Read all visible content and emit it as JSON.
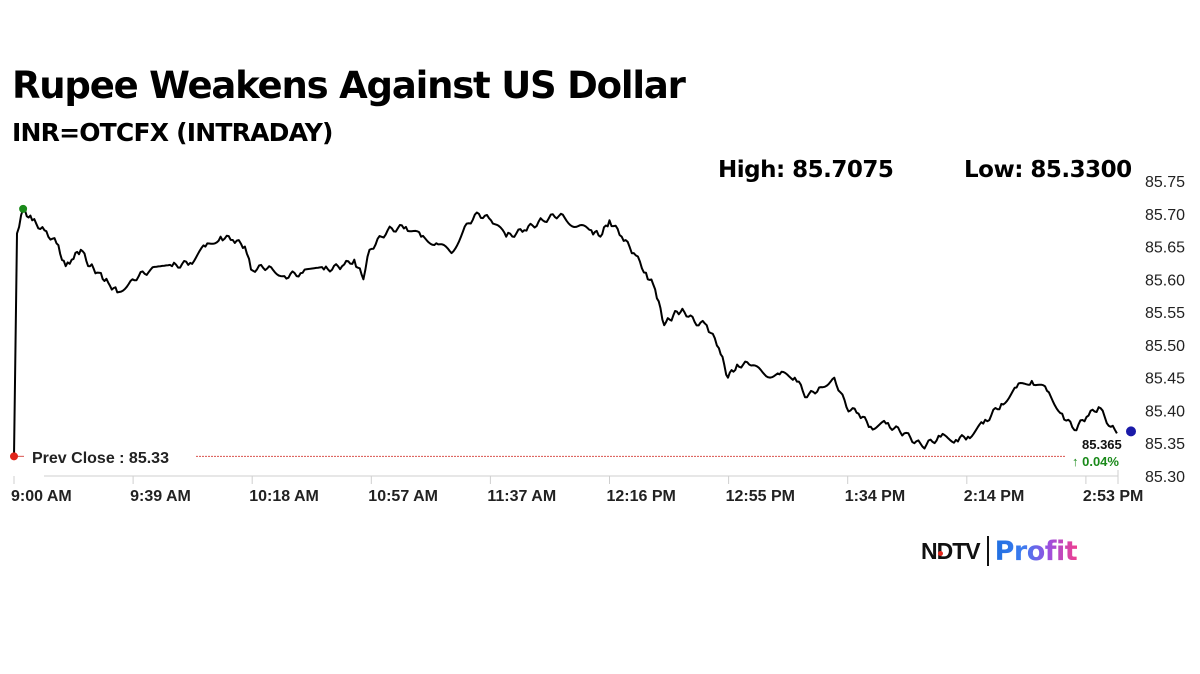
{
  "header": {
    "title": "Rupee Weakens Against US Dollar",
    "subtitle": "INR=OTCFX (INTRADAY)",
    "high_label": "High: 85.7075",
    "low_label": "Low: 85.3300"
  },
  "annotations": {
    "prev_close_label": "Prev Close : 85.33",
    "last_value": "85.365",
    "change": "↑ 0.04%"
  },
  "colors": {
    "line": "#000000",
    "prev_close_line": "#d9534f",
    "start_marker": "#e1251b",
    "high_marker": "#1a8a1a",
    "end_marker": "#1a1aa8",
    "change_up": "#1a8a1a",
    "axis": "#cccccc"
  },
  "logo": {
    "brand": "NDTV",
    "product": "Profit"
  },
  "chart_data": {
    "type": "line",
    "title": "Rupee Weakens Against US Dollar",
    "subtitle": "INR=OTCFX (INTRADAY)",
    "xlabel": "",
    "ylabel": "",
    "ylim": [
      85.3,
      85.75
    ],
    "yticks": [
      "85.75",
      "85.70",
      "85.65",
      "85.60",
      "85.55",
      "85.50",
      "85.45",
      "85.40",
      "85.35",
      "85.30"
    ],
    "xticks": [
      "9:00 AM",
      "9:39 AM",
      "10:18 AM",
      "10:57 AM",
      "11:37 AM",
      "12:16 PM",
      "12:55 PM",
      "1:34 PM",
      "2:14 PM",
      "2:53 PM"
    ],
    "grid": false,
    "legend": null,
    "y_axis_position": "right",
    "high": 85.7075,
    "low": 85.33,
    "prev_close": 85.33,
    "last": 85.365,
    "change_pct": 0.04,
    "series": [
      {
        "name": "INR=OTCFX",
        "x": [
          "9:00 AM",
          "9:01 AM",
          "9:03 AM",
          "9:06 AM",
          "9:10 AM",
          "9:14 AM",
          "9:17 AM",
          "9:19 AM",
          "9:22 AM",
          "9:25 AM",
          "9:28 AM",
          "9:31 AM",
          "9:34 AM",
          "9:39 AM",
          "9:45 AM",
          "9:52 AM",
          "9:58 AM",
          "10:03 AM",
          "10:08 AM",
          "10:12 AM",
          "10:16 AM",
          "10:18 AM",
          "10:24 AM",
          "10:29 AM",
          "10:35 AM",
          "10:42 AM",
          "10:48 AM",
          "10:52 AM",
          "10:55 AM",
          "10:57 AM",
          "11:03 AM",
          "11:09 AM",
          "11:14 AM",
          "11:19 AM",
          "11:24 AM",
          "11:29 AM",
          "11:33 AM",
          "11:37 AM",
          "11:42 AM",
          "11:48 AM",
          "11:54 AM",
          "12:00 PM",
          "12:05 PM",
          "12:10 PM",
          "12:13 PM",
          "12:16 PM",
          "12:20 PM",
          "12:24 PM",
          "12:28 PM",
          "12:31 PM",
          "12:34 PM",
          "12:37 PM",
          "12:40 PM",
          "12:44 PM",
          "12:48 PM",
          "12:52 PM",
          "12:55 PM",
          "12:58 PM",
          "1:02 PM",
          "1:07 PM",
          "1:12 PM",
          "1:17 PM",
          "1:21 PM",
          "1:25 PM",
          "1:30 PM",
          "1:34 PM",
          "1:38 PM",
          "1:42 PM",
          "1:47 PM",
          "1:53 PM",
          "1:59 PM",
          "2:05 PM",
          "2:10 PM",
          "2:14 PM",
          "2:19 PM",
          "2:25 PM",
          "2:30 PM",
          "2:35 PM",
          "2:40 PM",
          "2:45 PM",
          "2:49 PM",
          "2:53 PM",
          "2:57 PM",
          "3:01 PM",
          "3:03 PM"
        ],
        "values": [
          85.33,
          85.67,
          85.7075,
          85.69,
          85.675,
          85.655,
          85.62,
          85.63,
          85.645,
          85.62,
          85.61,
          85.595,
          85.58,
          85.6,
          85.615,
          85.62,
          85.625,
          85.65,
          85.665,
          85.66,
          85.65,
          85.615,
          85.62,
          85.605,
          85.61,
          85.615,
          85.62,
          85.63,
          85.6,
          85.645,
          85.675,
          85.68,
          85.665,
          85.655,
          85.64,
          85.685,
          85.7,
          85.69,
          85.665,
          85.675,
          85.69,
          85.7,
          85.68,
          85.675,
          85.665,
          85.69,
          85.665,
          85.64,
          85.61,
          85.585,
          85.53,
          85.545,
          85.555,
          85.535,
          85.53,
          85.495,
          85.45,
          85.47,
          85.47,
          85.455,
          85.455,
          85.45,
          85.42,
          85.435,
          85.45,
          85.405,
          85.395,
          85.375,
          85.38,
          85.365,
          85.345,
          85.36,
          85.355,
          85.36,
          85.38,
          85.41,
          85.435,
          85.445,
          85.43,
          85.395,
          85.37,
          85.39,
          85.405,
          85.375,
          85.365
        ]
      }
    ]
  }
}
